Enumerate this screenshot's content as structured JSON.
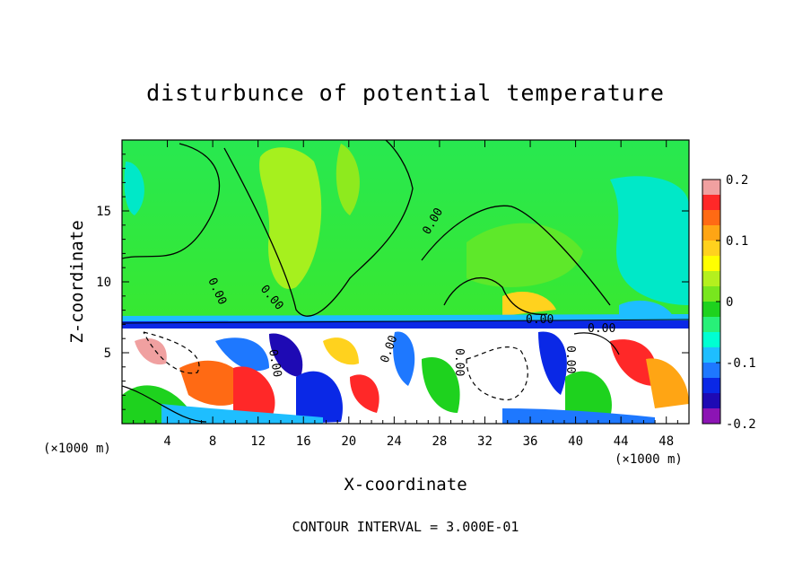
{
  "chart_data": {
    "type": "heatmap",
    "title": "disturbunce of potential temperature",
    "xlabel": "X-coordinate",
    "ylabel": "Z-coordinate",
    "x_unit": "(×1000 m)",
    "xlim": [
      0,
      50
    ],
    "ylim": [
      0,
      20
    ],
    "x_ticks": [
      "4",
      "8",
      "12",
      "16",
      "20",
      "24",
      "28",
      "32",
      "36",
      "40",
      "44",
      "48"
    ],
    "y_ticks": [
      "5",
      "10",
      "15"
    ],
    "colorbar": {
      "range": [
        -0.2,
        0.2
      ],
      "tick_labels": [
        "0.2",
        "0.1",
        "0",
        "-0.1",
        "-0.2"
      ],
      "colors": [
        "#f0a0a0",
        "#ff2828",
        "#ff6a14",
        "#ffa514",
        "#ffd21e",
        "#ffff00",
        "#b4f01e",
        "#78e61e",
        "#1ed21e",
        "#28f078",
        "#00ffd2",
        "#1ebeff",
        "#1e78ff",
        "#0a28e6",
        "#1e0ab4",
        "#8c14b4"
      ]
    },
    "contour_labels": [
      "0.00",
      "0.00",
      "0.00",
      "0.00",
      "0.00",
      "0.00",
      "0.00",
      "0.00",
      "0.00"
    ],
    "contour_interval_text": "CONTOUR INTERVAL =  3.000E-01"
  }
}
